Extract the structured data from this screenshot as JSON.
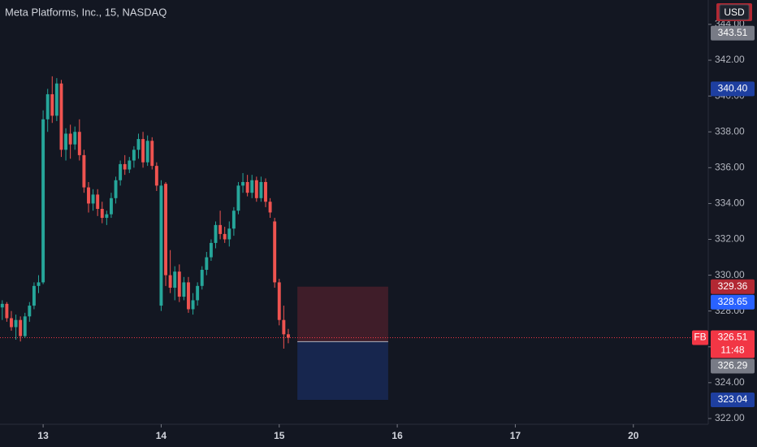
{
  "chart_data": {
    "type": "candlestick",
    "title": "Meta Platforms, Inc., 15, NASDAQ",
    "currency": "USD",
    "up_color": "#26a69a",
    "down_color": "#ef5350",
    "open": [
      328.2,
      328.4,
      327.6,
      327.1,
      327.5,
      326.6,
      327.7,
      328.3,
      329.4,
      329.6,
      338.7,
      340.1,
      338.9,
      340.7,
      337.0,
      337.9,
      337.3,
      338.0,
      336.7,
      334.9,
      334.0,
      334.5,
      333.7,
      333.2,
      333.4,
      334.3,
      335.3,
      336.2,
      335.9,
      336.4,
      337.0,
      337.6,
      336.3,
      337.5,
      336.1,
      328.3,
      335.1,
      330.0,
      329.3,
      330.2,
      328.8,
      329.6,
      328.1,
      328.6,
      329.4,
      330.3,
      331.0,
      331.8,
      332.8,
      332.3,
      332.0,
      332.6,
      333.6,
      335.0,
      335.2,
      334.6,
      335.3,
      334.3,
      335.2,
      334.1,
      333.0,
      329.6,
      327.5,
      326.7
    ],
    "high": [
      328.6,
      328.5,
      328.0,
      327.8,
      327.7,
      327.9,
      328.5,
      329.6,
      330.0,
      339.2,
      340.4,
      341.1,
      341.0,
      340.9,
      338.2,
      338.4,
      338.3,
      338.7,
      337.0,
      335.2,
      334.8,
      334.8,
      334.1,
      333.6,
      334.6,
      335.5,
      336.4,
      336.7,
      336.6,
      337.2,
      337.9,
      338.0,
      337.8,
      337.7,
      336.3,
      335.3,
      335.2,
      331.4,
      330.5,
      330.6,
      329.9,
      329.9,
      329.0,
      329.6,
      330.5,
      331.3,
      332.0,
      333.0,
      333.6,
      332.7,
      333.0,
      333.8,
      335.2,
      335.7,
      335.6,
      335.6,
      335.5,
      335.5,
      335.4,
      334.3,
      333.2,
      329.8,
      328.3,
      327.0
    ],
    "low": [
      327.5,
      327.4,
      326.9,
      326.4,
      326.3,
      326.5,
      327.4,
      328.1,
      329.0,
      329.5,
      338.0,
      338.5,
      338.6,
      336.6,
      336.4,
      336.5,
      337.0,
      336.4,
      334.6,
      333.5,
      333.6,
      333.3,
      332.9,
      332.8,
      333.2,
      334.0,
      335.0,
      335.6,
      335.7,
      336.0,
      336.5,
      336.0,
      336.1,
      335.9,
      334.7,
      328.0,
      329.4,
      329.0,
      328.6,
      328.5,
      328.6,
      327.9,
      327.8,
      328.3,
      329.2,
      330.0,
      330.8,
      331.5,
      332.0,
      331.8,
      331.6,
      332.2,
      333.4,
      334.6,
      334.4,
      334.3,
      334.1,
      334.1,
      333.8,
      333.2,
      329.3,
      327.2,
      325.9,
      326.2
    ],
    "close": [
      328.4,
      327.6,
      327.1,
      327.5,
      326.6,
      327.7,
      328.3,
      329.4,
      329.6,
      338.7,
      340.1,
      338.9,
      340.7,
      337.0,
      337.9,
      337.3,
      338.0,
      336.7,
      334.9,
      334.0,
      334.5,
      333.7,
      333.2,
      333.4,
      334.3,
      335.3,
      336.2,
      335.9,
      336.4,
      337.0,
      337.6,
      336.3,
      337.5,
      336.1,
      335.0,
      335.0,
      330.0,
      329.3,
      330.2,
      328.8,
      329.6,
      328.1,
      328.6,
      329.4,
      330.3,
      331.0,
      331.8,
      332.8,
      332.3,
      332.0,
      332.6,
      333.6,
      335.0,
      335.2,
      334.6,
      335.3,
      334.3,
      335.2,
      334.1,
      333.5,
      329.6,
      327.5,
      326.7,
      326.51
    ],
    "ylim": [
      321.68,
      345.36
    ],
    "yticks": [
      {
        "value": 322,
        "label": "322.00"
      },
      {
        "value": 324,
        "label": "324.00"
      },
      {
        "value": 326,
        "label": "326.00"
      },
      {
        "value": 328,
        "label": "328.00"
      },
      {
        "value": 330,
        "label": "330.00"
      },
      {
        "value": 332,
        "label": "332.00"
      },
      {
        "value": 334,
        "label": "334.00"
      },
      {
        "value": 336,
        "label": "336.00"
      },
      {
        "value": 338,
        "label": "338.00"
      },
      {
        "value": 340,
        "label": "340.00"
      },
      {
        "value": 342,
        "label": "342.00"
      },
      {
        "value": 344,
        "label": "344.00"
      }
    ],
    "xlim": [
      -0.5,
      155.5
    ],
    "xticks": [
      {
        "value": 9,
        "label": "13"
      },
      {
        "value": 35,
        "label": "14"
      },
      {
        "value": 61,
        "label": "15"
      },
      {
        "value": 87,
        "label": "16"
      },
      {
        "value": 113,
        "label": "17"
      },
      {
        "value": 139,
        "label": "20"
      }
    ],
    "price_markers": [
      {
        "value": 343.51,
        "label": "343.51",
        "color": "#787b86"
      },
      {
        "value": 340.4,
        "label": "340.40",
        "color": "#1e3fa0"
      },
      {
        "value": 329.36,
        "label": "329.36",
        "color": "#b22833"
      },
      {
        "value": 328.65,
        "label": "328.65",
        "color": "#2962ff"
      },
      {
        "value": 326.51,
        "label": "326.51",
        "color": "#f23645",
        "symbol": "FB",
        "countdown": "11:48"
      },
      {
        "value": 326.29,
        "label": "326.29",
        "color": "#787b86"
      },
      {
        "value": 323.04,
        "label": "323.04",
        "color": "#1e3fa0"
      }
    ]
  }
}
